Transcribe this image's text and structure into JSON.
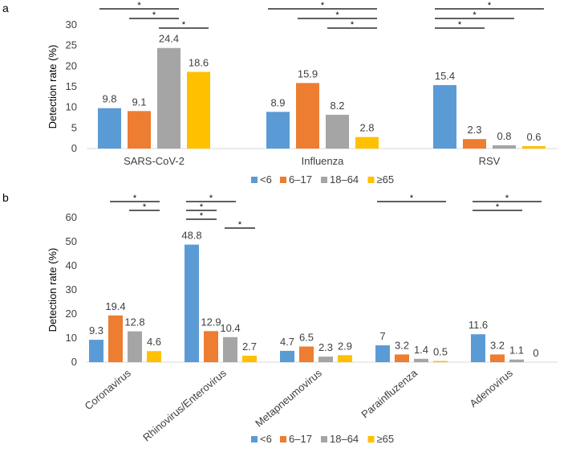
{
  "colors": {
    "<6": "#5B9BD5",
    "6–17": "#ED7D31",
    "18–64": "#A5A5A5",
    "≥65": "#FFC000",
    "sig_line": "#000000",
    "gridline": "#D9D9D9"
  },
  "chart_data": [
    {
      "panel_label": "a",
      "type": "bar",
      "ylabel": "Detection rate (%)",
      "ylim": [
        0,
        30
      ],
      "yticks": [
        0,
        5,
        10,
        15,
        20,
        25,
        30
      ],
      "categories": [
        "SARS-CoV-2",
        "Influenza",
        "RSV"
      ],
      "series": [
        {
          "name": "<6",
          "values": [
            9.8,
            8.9,
            15.4
          ]
        },
        {
          "name": "6–17",
          "values": [
            9.1,
            15.9,
            2.3
          ]
        },
        {
          "name": "18–64",
          "values": [
            24.4,
            8.2,
            0.8
          ]
        },
        {
          "name": "≥65",
          "values": [
            18.6,
            2.8,
            0.6
          ]
        }
      ],
      "data_labels": [
        [
          "9.8",
          "9.1",
          "24.4",
          "18.6"
        ],
        [
          "8.9",
          "15.9",
          "8.2",
          "2.8"
        ],
        [
          "15.4",
          "2.3",
          "0.8",
          "0.6"
        ]
      ],
      "significance": [
        {
          "category": 0,
          "from": 0,
          "to": 2,
          "label": "*"
        },
        {
          "category": 0,
          "from": 1,
          "to": 2,
          "label": "*"
        },
        {
          "category": 0,
          "from": 2,
          "to": 3,
          "label": "*"
        },
        {
          "category": 1,
          "from": 0,
          "to": 3,
          "label": "*"
        },
        {
          "category": 1,
          "from": 1,
          "to": 3,
          "label": "*"
        },
        {
          "category": 1,
          "from": 2,
          "to": 3,
          "label": "*"
        },
        {
          "category": 2,
          "from": 0,
          "to": 3,
          "label": "*"
        },
        {
          "category": 2,
          "from": 0,
          "to": 2,
          "label": "*"
        },
        {
          "category": 2,
          "from": 0,
          "to": 1,
          "label": "*"
        }
      ],
      "legend": [
        "<6",
        "6–17",
        "18–64",
        "≥65"
      ],
      "legend_position": "bottom-center"
    },
    {
      "panel_label": "b",
      "type": "bar",
      "ylabel": "Detection rate (%)",
      "ylim": [
        0,
        60
      ],
      "yticks": [
        0,
        10,
        20,
        30,
        40,
        50,
        60
      ],
      "categories": [
        "Coronavirus",
        "Rhinovirus/Enterovirus",
        "Metapneumovirus",
        "Parainfluzenza",
        "Adenovirus"
      ],
      "series": [
        {
          "name": "<6",
          "values": [
            9.3,
            48.8,
            4.7,
            7,
            11.6
          ]
        },
        {
          "name": "6–17",
          "values": [
            19.4,
            12.9,
            6.5,
            3.2,
            3.2
          ]
        },
        {
          "name": "18–64",
          "values": [
            12.8,
            10.4,
            2.3,
            1.4,
            1.1
          ]
        },
        {
          "name": "≥65",
          "values": [
            4.6,
            2.7,
            2.9,
            0.5,
            0
          ]
        }
      ],
      "data_labels": [
        [
          "9.3",
          "19.4",
          "12.8",
          "4.6"
        ],
        [
          "48.8",
          "12.9",
          "10.4",
          "2.7"
        ],
        [
          "4.7",
          "6.5",
          "2.3",
          "2.9"
        ],
        [
          "7",
          "3.2",
          "1.4",
          "0.5"
        ],
        [
          "11.6",
          "3.2",
          "1.1",
          "0"
        ]
      ],
      "significance": [
        {
          "category": 0,
          "from": 1,
          "to": 3,
          "label": "*"
        },
        {
          "category": 0,
          "from": 2,
          "to": 3,
          "label": "*"
        },
        {
          "category": 1,
          "from": 0,
          "to": 2,
          "label": "*"
        },
        {
          "category": 1,
          "from": 0,
          "to": 1,
          "label": "*"
        },
        {
          "category": 1,
          "from": 0,
          "to": 1,
          "label": "*"
        },
        {
          "category": 1,
          "from": 2,
          "to": 3,
          "label": "*"
        },
        {
          "category": 3,
          "from": 0,
          "to": 3,
          "label": "*"
        },
        {
          "category": 4,
          "from": 0,
          "to": 3,
          "label": "*"
        },
        {
          "category": 4,
          "from": 0,
          "to": 2,
          "label": "*"
        }
      ],
      "legend": [
        "<6",
        "6–17",
        "18–64",
        "≥65"
      ],
      "legend_position": "bottom-center",
      "category_label_rotation": "rotated"
    }
  ]
}
